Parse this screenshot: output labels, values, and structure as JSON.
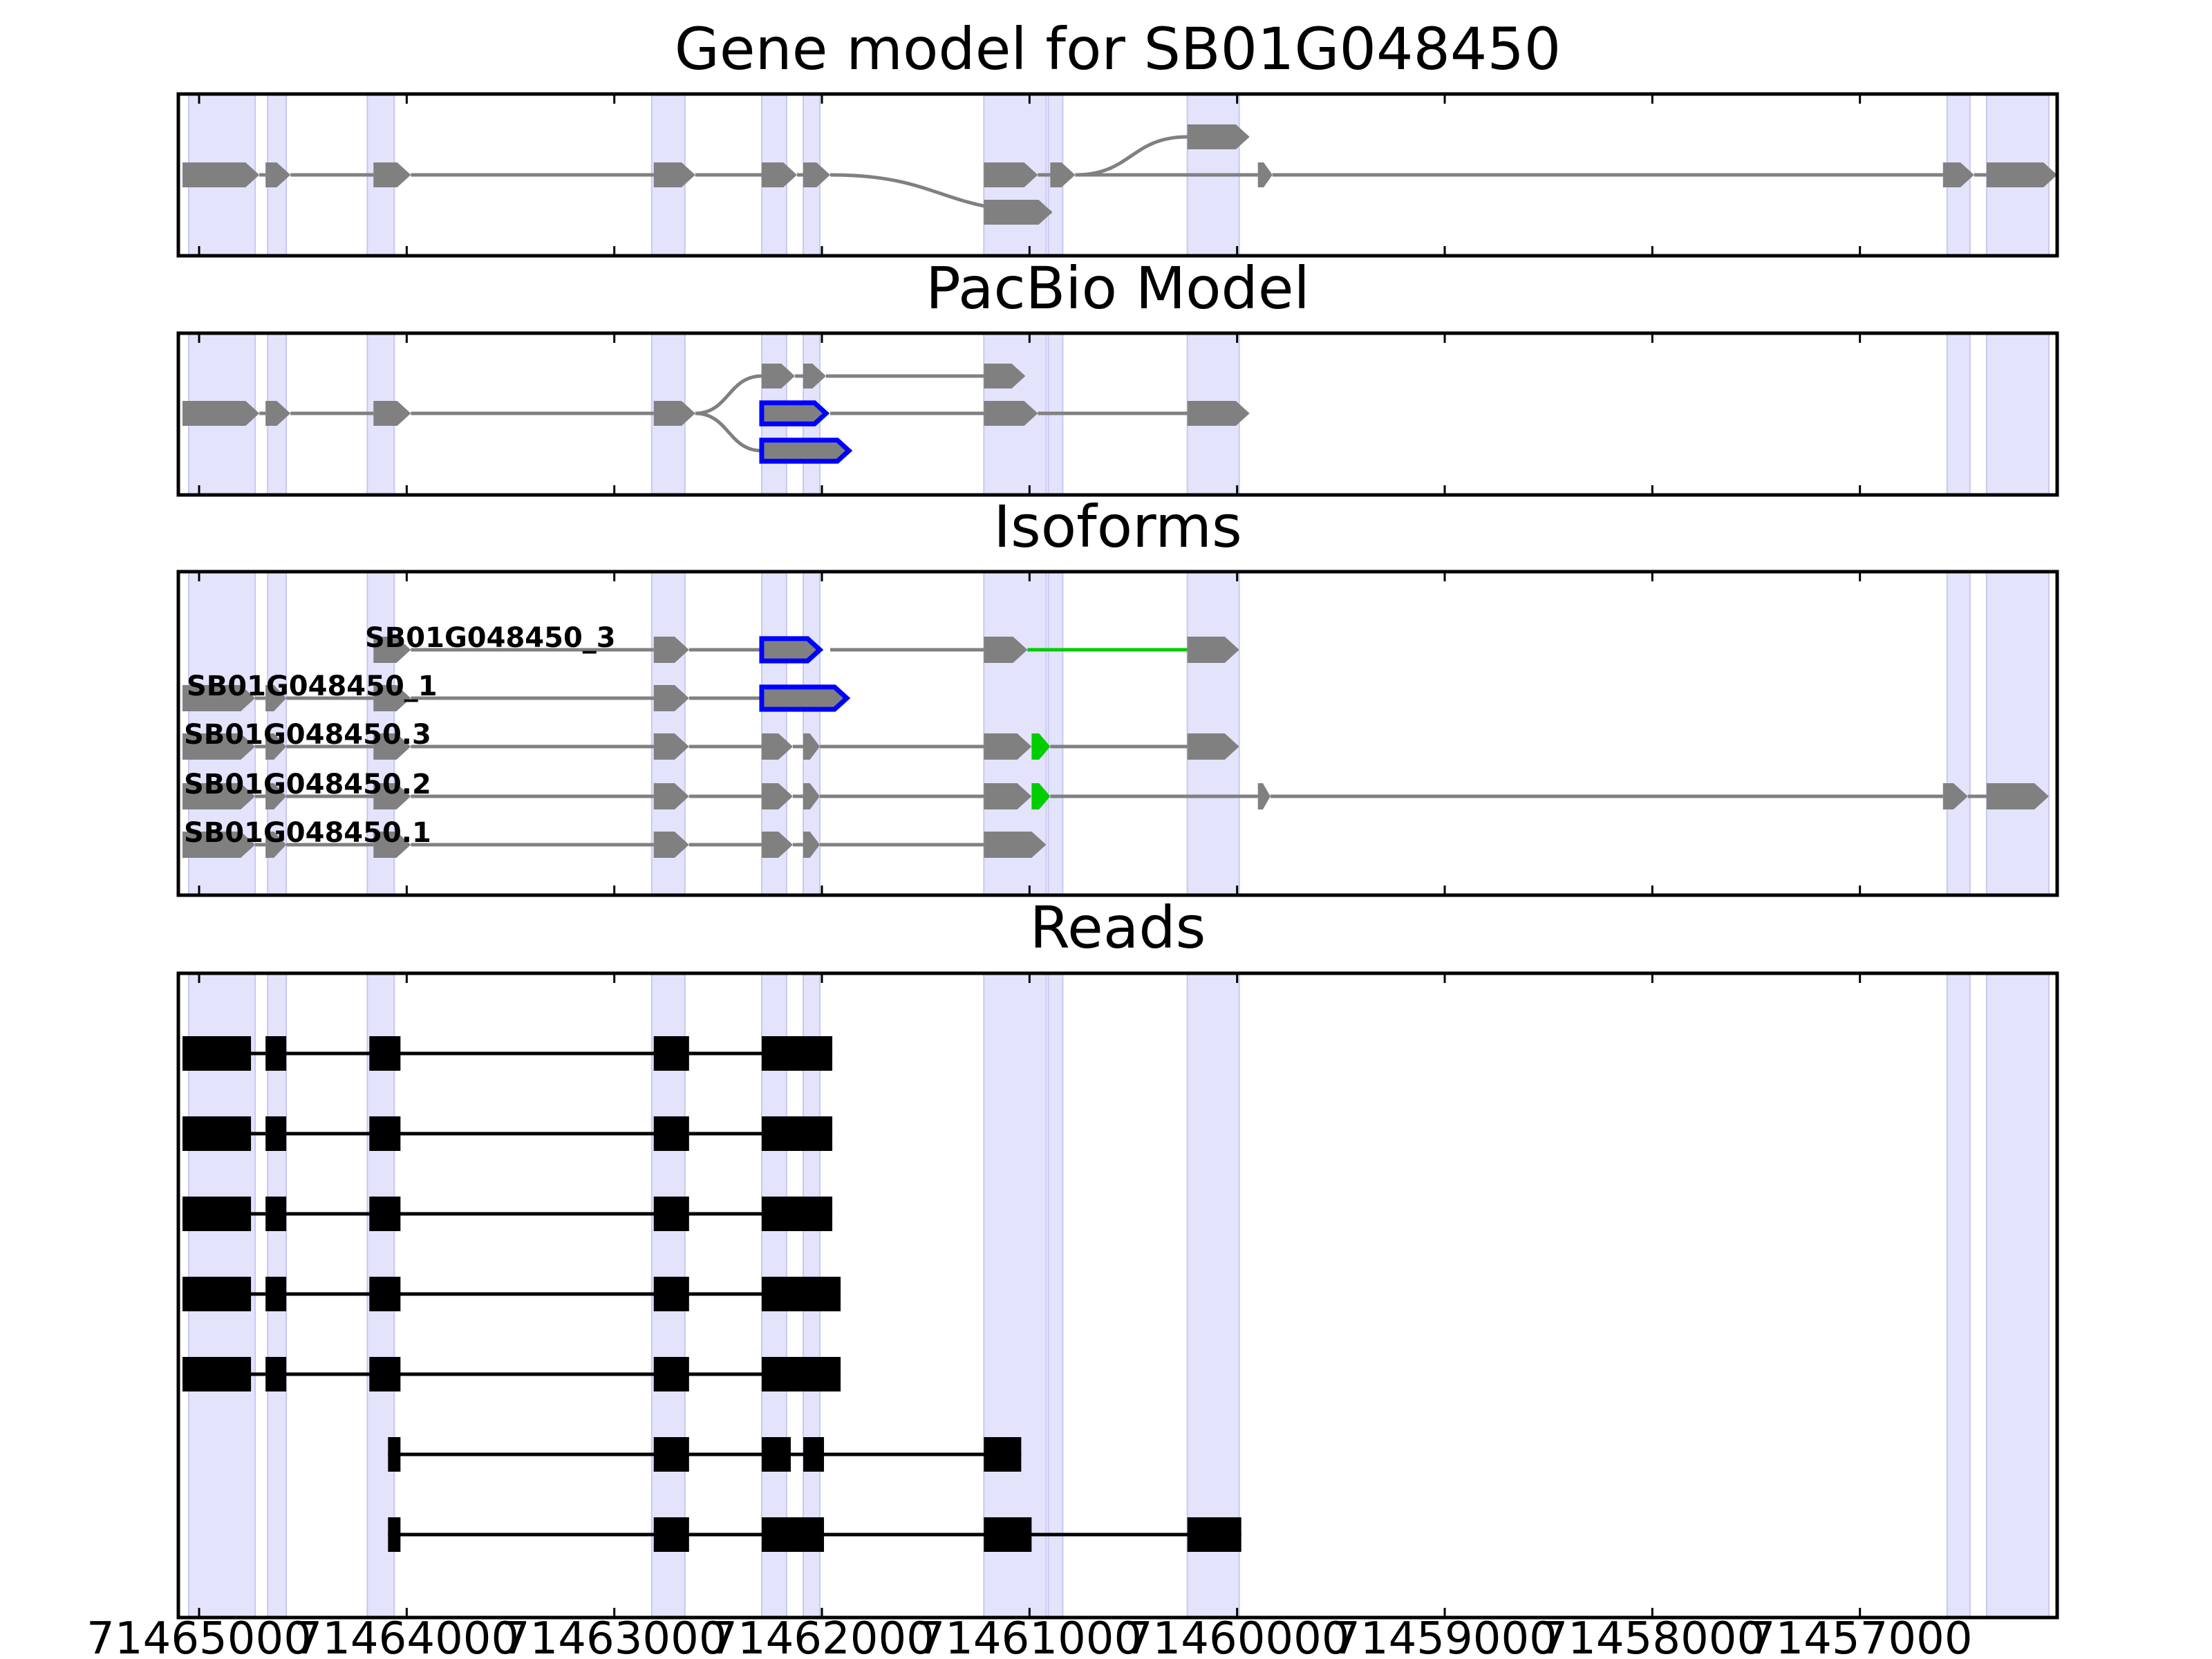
{
  "chart_data": {
    "type": "gene-model",
    "x_range": [
      71465100,
      71456050
    ],
    "x_ticks": [
      71465000,
      71464000,
      71463000,
      71462000,
      71461000,
      71460000,
      71459000,
      71458000,
      71457000
    ],
    "x_tick_labels": [
      "71465000",
      "71464000",
      "71463000",
      "71462000",
      "71461000",
      "71460000",
      "71459000",
      "71458000",
      "71457000"
    ],
    "colors": {
      "exon": "#808080",
      "read": "#000000",
      "highlight": "#0000ff",
      "novel": "#00cc00",
      "band": "#e3e3fc"
    },
    "bands": [
      [
        71465050,
        71464730
      ],
      [
        71464670,
        71464580
      ],
      [
        71464190,
        71464060
      ],
      [
        71462820,
        71462660
      ],
      [
        71462290,
        71462170
      ],
      [
        71462090,
        71462010
      ],
      [
        71461220,
        71460920
      ],
      [
        71460910,
        71460840
      ],
      [
        71460240,
        71459990
      ],
      [
        71456580,
        71456470
      ],
      [
        71456390,
        71456090
      ]
    ],
    "panels": [
      {
        "title": "Gene model for SB01G048450",
        "rows": 3,
        "tracks": [
          {
            "row": 1,
            "label": "",
            "exons": [
              [
                71465080,
                71464710
              ],
              [
                71464680,
                71464560
              ],
              [
                71464160,
                71463980
              ],
              [
                71462810,
                71462610
              ],
              [
                71462290,
                71462120
              ],
              [
                71462090,
                71461960
              ],
              [
                71461220,
                71460960
              ],
              [
                71460900,
                71460780
              ],
              [
                71459900,
                71459830
              ],
              [
                71456600,
                71456450
              ],
              [
                71456390,
                71456050
              ]
            ],
            "introns": [
              [
                71464710,
                71464680
              ],
              [
                71464560,
                71464160
              ],
              [
                71463980,
                71462810
              ],
              [
                71462610,
                71462290
              ],
              [
                71462120,
                71462090
              ],
              [
                71461960,
                71461960,
                2,
                "curve"
              ],
              [
                71460960,
                71460900
              ],
              [
                71460780,
                71459900
              ],
              [
                71460780,
                71460240,
                0,
                "curve"
              ],
              [
                71459830,
                71456600
              ],
              [
                71456450,
                71456390
              ]
            ]
          },
          {
            "row": 0,
            "label": "",
            "exons": [
              [
                71460240,
                71459940
              ]
            ],
            "introns": []
          },
          {
            "row": 2,
            "label": "",
            "exons": [
              [
                71461220,
                71460890
              ]
            ],
            "introns": []
          }
        ]
      },
      {
        "title": "PacBio Model",
        "rows": 3,
        "tracks": [
          {
            "row": 1,
            "label": "",
            "exons": [
              [
                71465080,
                71464710
              ],
              [
                71464680,
                71464560
              ],
              [
                71464160,
                71463980
              ],
              [
                71462810,
                71462610
              ],
              [
                71461220,
                71460960
              ],
              [
                71460240,
                71459940
              ]
            ],
            "introns": [
              [
                71464710,
                71464680
              ],
              [
                71464560,
                71464160
              ],
              [
                71463980,
                71462810
              ],
              [
                71462610,
                71462290,
                0,
                "curve"
              ],
              [
                71462610,
                71462290,
                2,
                "curve"
              ],
              [
                71461960,
                71461220
              ],
              [
                71460960,
                71460240
              ]
            ],
            "highlight": [
              [
                71462290,
                71461980
              ]
            ]
          },
          {
            "row": 0,
            "label": "",
            "exons": [
              [
                71462290,
                71462130
              ],
              [
                71462090,
                71461980
              ],
              [
                71461220,
                71461020
              ]
            ],
            "introns": [
              [
                71462130,
                71462090
              ],
              [
                71461980,
                71461220
              ]
            ]
          },
          {
            "row": 2,
            "label": "",
            "exons": [],
            "introns": [],
            "highlight": [
              [
                71462290,
                71461870
              ]
            ]
          }
        ]
      },
      {
        "title": "Isoforms",
        "rows": 5,
        "tracks": [
          {
            "row": 0,
            "label": "SB01G048450_3",
            "exons": [
              [
                71464160,
                71463980
              ],
              [
                71462810,
                71462640
              ],
              [
                71461220,
                71461010
              ],
              [
                71460240,
                71459990
              ]
            ],
            "introns": [
              [
                71463980,
                71462810
              ],
              [
                71462640,
                71462290
              ],
              [
                71461960,
                71461220
              ]
            ],
            "green_introns": [
              [
                71461010,
                71460240
              ]
            ],
            "highlight": [
              [
                71462290,
                71462010
              ]
            ]
          },
          {
            "row": 1,
            "label": "SB01G048450_1",
            "exons": [
              [
                71465080,
                71464730
              ],
              [
                71464680,
                71464580
              ],
              [
                71464160,
                71463980
              ],
              [
                71462810,
                71462640
              ]
            ],
            "introns": [
              [
                71464730,
                71464680
              ],
              [
                71464580,
                71464160
              ],
              [
                71463980,
                71462810
              ],
              [
                71462640,
                71462290
              ]
            ],
            "highlight": [
              [
                71462290,
                71461880
              ]
            ]
          },
          {
            "row": 2,
            "label": "SB01G048450.3",
            "exons": [
              [
                71465080,
                71464730
              ],
              [
                71464680,
                71464580
              ],
              [
                71464160,
                71463980
              ],
              [
                71462810,
                71462640
              ],
              [
                71462290,
                71462140
              ],
              [
                71462090,
                71462010
              ],
              [
                71461220,
                71460990
              ],
              [
                71460240,
                71459990
              ]
            ],
            "introns": [
              [
                71464730,
                71464680
              ],
              [
                71464580,
                71464160
              ],
              [
                71463980,
                71462810
              ],
              [
                71462640,
                71462290
              ],
              [
                71462140,
                71462090
              ],
              [
                71462010,
                71461220
              ],
              [
                71460900,
                71460240
              ]
            ],
            "green": [
              [
                71460990,
                71460900
              ]
            ]
          },
          {
            "row": 3,
            "label": "SB01G048450.2",
            "exons": [
              [
                71465080,
                71464730
              ],
              [
                71464680,
                71464580
              ],
              [
                71464160,
                71463980
              ],
              [
                71462810,
                71462640
              ],
              [
                71462290,
                71462140
              ],
              [
                71462090,
                71462010
              ],
              [
                71461220,
                71460990
              ],
              [
                71459900,
                71459840
              ],
              [
                71456600,
                71456480
              ],
              [
                71456390,
                71456090
              ]
            ],
            "introns": [
              [
                71464730,
                71464680
              ],
              [
                71464580,
                71464160
              ],
              [
                71463980,
                71462810
              ],
              [
                71462640,
                71462290
              ],
              [
                71462140,
                71462090
              ],
              [
                71462010,
                71461220
              ],
              [
                71460900,
                71459900
              ],
              [
                71459840,
                71456600
              ],
              [
                71456480,
                71456390
              ]
            ],
            "green": [
              [
                71460990,
                71460900
              ]
            ]
          },
          {
            "row": 4,
            "label": "SB01G048450.1",
            "exons": [
              [
                71465080,
                71464730
              ],
              [
                71464680,
                71464580
              ],
              [
                71464160,
                71463980
              ],
              [
                71462810,
                71462640
              ],
              [
                71462290,
                71462140
              ],
              [
                71462090,
                71462010
              ],
              [
                71461220,
                71460920
              ]
            ],
            "introns": [
              [
                71464730,
                71464680
              ],
              [
                71464580,
                71464160
              ],
              [
                71463980,
                71462810
              ],
              [
                71462640,
                71462290
              ],
              [
                71462140,
                71462090
              ],
              [
                71462010,
                71461220
              ]
            ]
          }
        ]
      },
      {
        "title": "Reads",
        "rows": 7,
        "reads": [
          {
            "exons": [
              [
                71465080,
                71464750
              ],
              [
                71464680,
                71464580
              ],
              [
                71464180,
                71464030
              ],
              [
                71462810,
                71462640
              ],
              [
                71462290,
                71461950
              ]
            ]
          },
          {
            "exons": [
              [
                71465080,
                71464750
              ],
              [
                71464680,
                71464580
              ],
              [
                71464180,
                71464030
              ],
              [
                71462810,
                71462640
              ],
              [
                71462290,
                71461950
              ]
            ]
          },
          {
            "exons": [
              [
                71465080,
                71464750
              ],
              [
                71464680,
                71464580
              ],
              [
                71464180,
                71464030
              ],
              [
                71462810,
                71462640
              ],
              [
                71462290,
                71461950
              ]
            ]
          },
          {
            "exons": [
              [
                71465080,
                71464750
              ],
              [
                71464680,
                71464580
              ],
              [
                71464180,
                71464030
              ],
              [
                71462810,
                71462640
              ],
              [
                71462290,
                71461910
              ]
            ]
          },
          {
            "exons": [
              [
                71465080,
                71464750
              ],
              [
                71464680,
                71464580
              ],
              [
                71464180,
                71464030
              ],
              [
                71462810,
                71462640
              ],
              [
                71462290,
                71461910
              ]
            ]
          },
          {
            "exons": [
              [
                71464090,
                71464030
              ],
              [
                71462810,
                71462640
              ],
              [
                71462290,
                71462150
              ],
              [
                71462090,
                71461990
              ],
              [
                71461220,
                71461040
              ]
            ]
          },
          {
            "exons": [
              [
                71464090,
                71464030
              ],
              [
                71462810,
                71462640
              ],
              [
                71462290,
                71461990
              ],
              [
                71461220,
                71460990
              ],
              [
                71460240,
                71459980
              ]
            ]
          }
        ]
      }
    ]
  }
}
